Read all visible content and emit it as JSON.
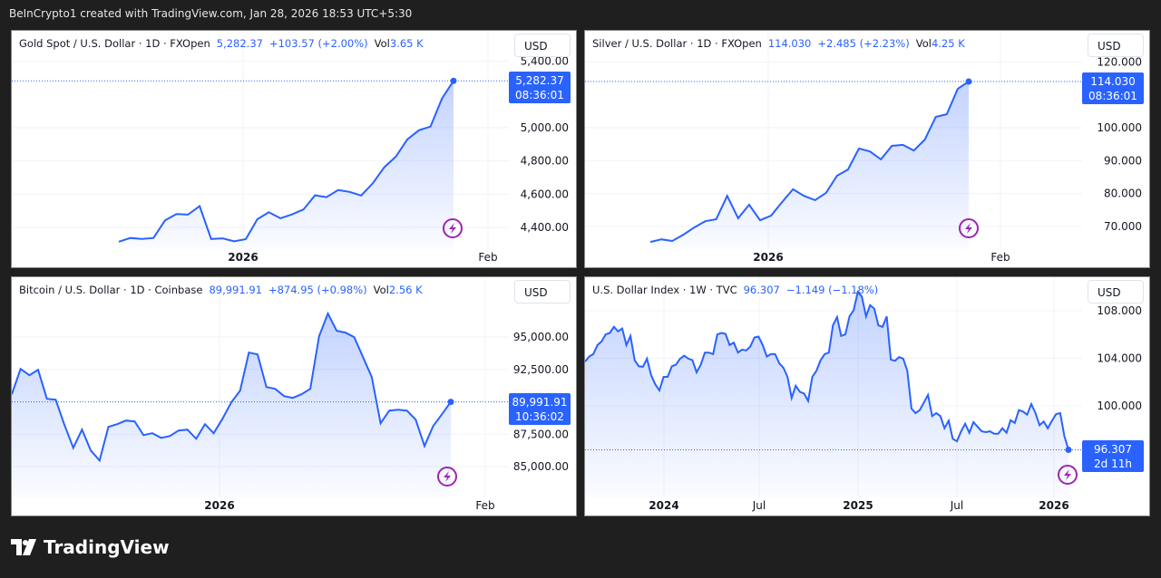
{
  "caption": "BeInCrypto1 created with TradingView.com, Jan 28, 2026 18:53 UTC+5:30",
  "brand": "TradingView",
  "accent": "#2962ff",
  "chart_data": [
    {
      "type": "area",
      "title": "Gold Spot / U.S. Dollar · 1D · FXOpen",
      "last": "5,282.37",
      "change": "+103.57 (+2.00%)",
      "vol_label": "Vol",
      "vol": "3.65 K",
      "currency": "USD",
      "countdown": "08:36:01",
      "yticks": [
        4400,
        4600,
        4800,
        5000,
        5400
      ],
      "ytick_labels": [
        "4,400.00",
        "4,600.00",
        "4,800.00",
        "5,000.00",
        "5,400.00"
      ],
      "xticks": [
        "2026",
        "Feb"
      ],
      "values": [
        4314,
        4336,
        4330,
        4336,
        4442,
        4480,
        4477,
        4528,
        4330,
        4334,
        4316,
        4329,
        4449,
        4491,
        4455,
        4478,
        4508,
        4593,
        4582,
        4625,
        4614,
        4592,
        4665,
        4762,
        4826,
        4930,
        4985,
        5007,
        5176,
        5282.37
      ]
    },
    {
      "type": "area",
      "title": "Silver / U.S. Dollar · 1D · FXOpen",
      "last": "114.030",
      "change": "+2.485 (+2.23%)",
      "vol_label": "Vol",
      "vol": "4.25 K",
      "currency": "USD",
      "countdown": "08:36:01",
      "yticks": [
        70,
        80,
        90,
        100,
        120
      ],
      "ytick_labels": [
        "70.000",
        "80.000",
        "90.000",
        "100.000",
        "120.000"
      ],
      "xticks": [
        "2026",
        "Feb"
      ],
      "values": [
        65.3,
        66.1,
        65.6,
        67.5,
        69.7,
        71.6,
        72.2,
        79.3,
        72.5,
        76.6,
        71.9,
        73.3,
        77.4,
        81.3,
        79.3,
        78.0,
        80.2,
        85.4,
        87.3,
        93.7,
        92.8,
        90.4,
        94.5,
        94.8,
        93.1,
        96.4,
        103.3,
        104.1,
        111.8,
        114.03
      ]
    },
    {
      "type": "area",
      "title": "Bitcoin / U.S. Dollar · 1D · Coinbase",
      "last": "89,991.91",
      "change": "+874.95 (+0.98%)",
      "vol_label": "Vol",
      "vol": "2.56 K",
      "currency": "USD",
      "countdown": "10:36:02",
      "yticks": [
        85000,
        87500,
        92500,
        95000
      ],
      "ytick_labels": [
        "85,000.00",
        "87,500.00",
        "92,500.00",
        "95,000.00"
      ],
      "xticks": [
        "2026",
        "Feb"
      ],
      "values": [
        90580,
        92540,
        92050,
        92470,
        90230,
        90160,
        88200,
        86450,
        87850,
        86240,
        85470,
        88060,
        88270,
        88550,
        88480,
        87430,
        87570,
        87220,
        87360,
        87780,
        87850,
        87150,
        88270,
        87570,
        88690,
        89950,
        90860,
        93800,
        93660,
        91140,
        91000,
        90440,
        90300,
        90580,
        91000,
        95060,
        96810,
        95480,
        95340,
        94990,
        93450,
        91900,
        88340,
        89320,
        89390,
        89320,
        88620,
        86590,
        88130,
        89040,
        89991.91
      ]
    },
    {
      "type": "area",
      "title": "U.S. Dollar Index · 1W · TVC",
      "last": "96.307",
      "change": "−1.149 (−1.18%)",
      "currency": "USD",
      "countdown": "2d 11h",
      "yticks": [
        100,
        104,
        108
      ],
      "ytick_labels": [
        "100.000",
        "104.000",
        "108.000"
      ],
      "xticks": [
        "2024",
        "Jul",
        "2025",
        "Jul",
        "2026"
      ],
      "values": [
        103.72,
        104.15,
        104.35,
        105.11,
        105.42,
        106.01,
        106.13,
        106.64,
        106.26,
        106.51,
        105.11,
        105.88,
        103.84,
        103.33,
        103.28,
        103.97,
        102.57,
        101.81,
        101.3,
        102.44,
        102.44,
        103.33,
        103.46,
        103.97,
        104.22,
        103.97,
        103.84,
        102.82,
        103.46,
        104.48,
        104.48,
        104.35,
        106.01,
        106.13,
        106.06,
        105.11,
        105.32,
        104.48,
        104.73,
        104.66,
        104.99,
        105.75,
        105.83,
        105.11,
        104.15,
        104.35,
        104.35,
        103.59,
        103.21,
        102.44,
        100.66,
        101.68,
        101.17,
        101.04,
        100.41,
        102.44,
        102.95,
        103.84,
        104.35,
        104.48,
        106.77,
        107.46,
        105.88,
        106.01,
        107.53,
        108.04,
        109.57,
        109.19,
        107.53,
        108.47,
        108.17,
        106.77,
        106.64,
        107.53,
        103.89,
        103.79,
        104.1,
        103.97,
        102.95,
        99.77,
        99.39,
        99.64,
        100.28,
        100.92,
        99.14,
        99.39,
        99.14,
        98.12,
        98.75,
        97.23,
        97.02,
        97.86,
        98.5,
        97.74,
        98.63,
        98.24,
        97.86,
        97.79,
        97.86,
        97.66,
        97.66,
        98.12,
        97.74,
        98.8,
        98.57,
        99.64,
        99.52,
        99.26,
        100.15,
        99.39,
        98.37,
        98.68,
        98.12,
        98.75,
        99.31,
        99.39,
        97.48,
        96.307
      ]
    }
  ]
}
